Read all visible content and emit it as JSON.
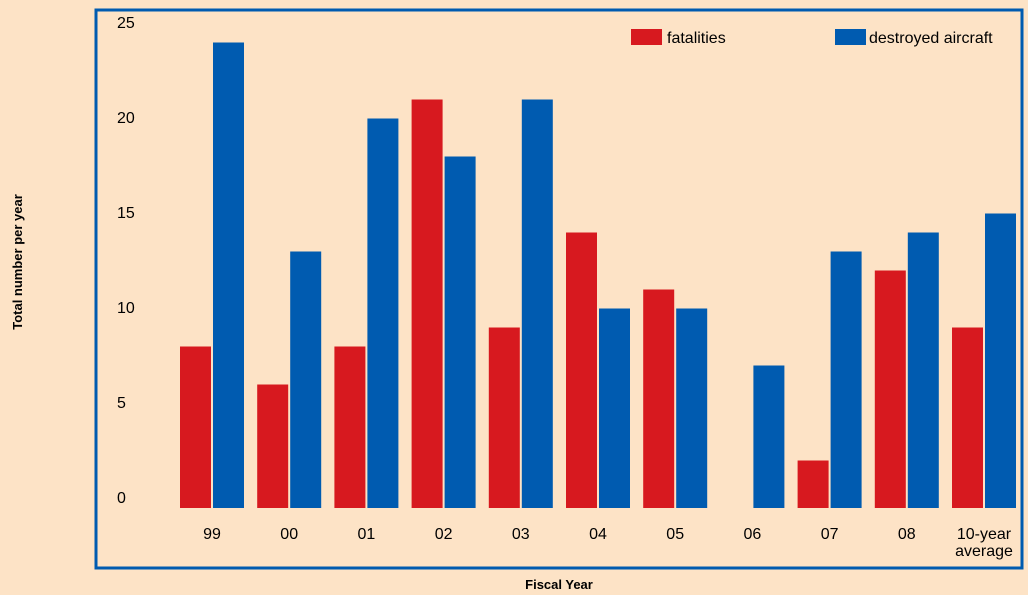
{
  "chart_data": {
    "type": "bar",
    "categories": [
      "99",
      "00",
      "01",
      "02",
      "03",
      "04",
      "05",
      "06",
      "07",
      "08",
      "10-year average"
    ],
    "category_lines": [
      [
        "99"
      ],
      [
        "00"
      ],
      [
        "01"
      ],
      [
        "02"
      ],
      [
        "03"
      ],
      [
        "04"
      ],
      [
        "05"
      ],
      [
        "06"
      ],
      [
        "07"
      ],
      [
        "08"
      ],
      [
        "10-year",
        "average"
      ]
    ],
    "series": [
      {
        "name": "fatalities",
        "color": "#d7191f",
        "values": [
          8.5,
          6.5,
          8.5,
          21.5,
          9.5,
          14.5,
          11.5,
          0,
          2.5,
          12.5,
          9.5
        ]
      },
      {
        "name": "destroyed aircraft",
        "color": "#005bb0",
        "values": [
          24.5,
          13.5,
          20.5,
          18.5,
          21.5,
          10.5,
          10.5,
          7.5,
          13.5,
          14.5,
          15.5
        ]
      }
    ],
    "xlabel": "Fiscal Year",
    "ylabel": "Total number per year",
    "ylim": [
      0,
      25
    ],
    "yticks": [
      0,
      5,
      10,
      15,
      20,
      25
    ],
    "grid": false,
    "legend_position": "top-right"
  },
  "colors": {
    "background": "#fde3c6",
    "frame": "#005bb0"
  }
}
